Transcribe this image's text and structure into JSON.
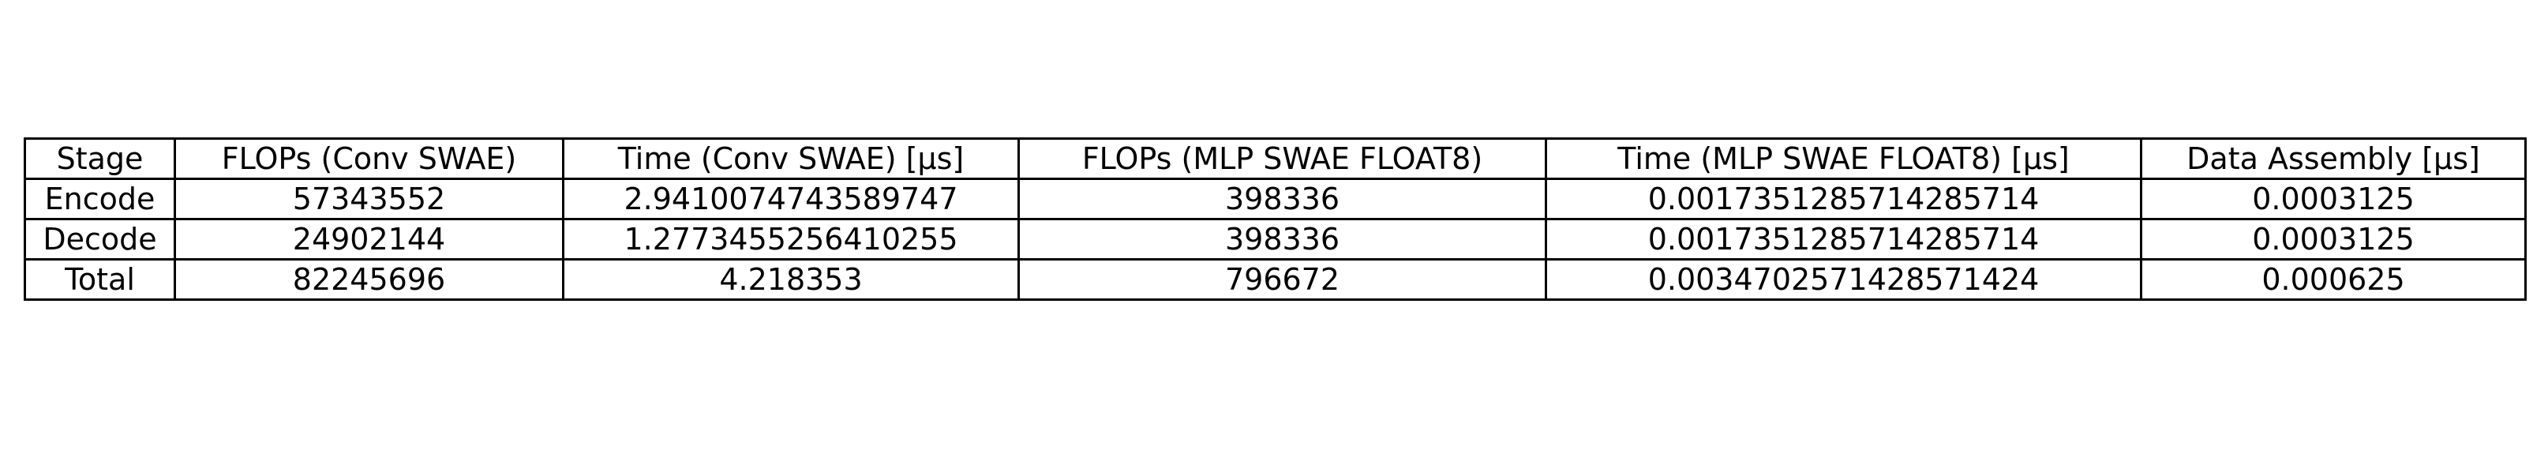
{
  "chart_data": {
    "type": "table",
    "columns": [
      "Stage",
      "FLOPs (Conv SWAE)",
      "Time (Conv SWAE) [µs]",
      "FLOPs (MLP SWAE FLOAT8)",
      "Time (MLP SWAE FLOAT8) [µs]",
      "Data Assembly [µs]"
    ],
    "rows": [
      [
        "Encode",
        "57343552",
        "2.9410074743589747",
        "398336",
        "0.0017351285714285714",
        "0.0003125"
      ],
      [
        "Decode",
        "24902144",
        "1.2773455256410255",
        "398336",
        "0.0017351285714285714",
        "0.0003125"
      ],
      [
        "Total",
        "82245696",
        "4.218353",
        "796672",
        "0.0034702571428571424",
        "0.000625"
      ]
    ]
  }
}
